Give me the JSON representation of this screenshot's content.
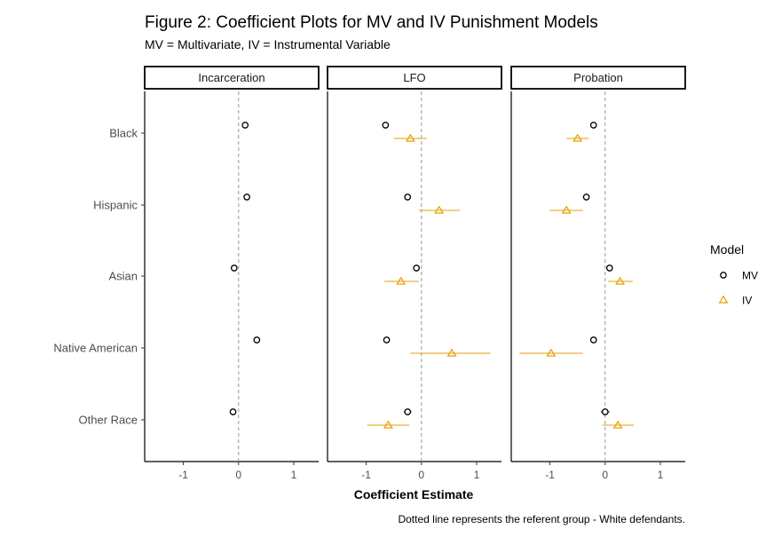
{
  "chart_data": {
    "type": "scatter",
    "title": "Figure 2: Coefficient Plots for MV and IV Punishment Models",
    "subtitle": "MV = Multivariate, IV = Instrumental Variable",
    "xlabel": "Coefficient Estimate",
    "caption": "Dotted line represents the referent group - White defendants.",
    "xlim": [
      -1.7,
      1.45
    ],
    "x_ticks": [
      "-1",
      "0",
      "1"
    ],
    "x_tick_values": [
      -1,
      0,
      1
    ],
    "reference_line": 0,
    "grid": false,
    "categories": [
      "Black",
      "Hispanic",
      "Asian",
      "Native American",
      "Other Race"
    ],
    "panels": [
      "Incarceration",
      "LFO",
      "Probation"
    ],
    "legend": {
      "title": "Model",
      "placement": "right",
      "items": [
        {
          "label": "MV",
          "shape": "circle",
          "color": "#000000"
        },
        {
          "label": "IV",
          "shape": "triangle",
          "color": "#E69F00"
        }
      ]
    },
    "series": [
      {
        "name": "MV",
        "color": "#000000",
        "shape": "circle",
        "points": [
          {
            "panel": "Incarceration",
            "category": "Black",
            "estimate": 0.12,
            "low": 0.08,
            "high": 0.16
          },
          {
            "panel": "Incarceration",
            "category": "Hispanic",
            "estimate": 0.15,
            "low": 0.11,
            "high": 0.19
          },
          {
            "panel": "Incarceration",
            "category": "Asian",
            "estimate": -0.08,
            "low": -0.13,
            "high": -0.03
          },
          {
            "panel": "Incarceration",
            "category": "Native American",
            "estimate": 0.33,
            "low": 0.29,
            "high": 0.37
          },
          {
            "panel": "Incarceration",
            "category": "Other Race",
            "estimate": -0.1,
            "low": -0.15,
            "high": -0.05
          },
          {
            "panel": "LFO",
            "category": "Black",
            "estimate": -0.65,
            "low": -0.69,
            "high": -0.61
          },
          {
            "panel": "LFO",
            "category": "Hispanic",
            "estimate": -0.25,
            "low": -0.29,
            "high": -0.21
          },
          {
            "panel": "LFO",
            "category": "Asian",
            "estimate": -0.09,
            "low": -0.15,
            "high": -0.03
          },
          {
            "panel": "LFO",
            "category": "Native American",
            "estimate": -0.63,
            "low": -0.67,
            "high": -0.59
          },
          {
            "panel": "LFO",
            "category": "Other Race",
            "estimate": -0.25,
            "low": -0.32,
            "high": -0.18
          },
          {
            "panel": "Probation",
            "category": "Black",
            "estimate": -0.21,
            "low": -0.25,
            "high": -0.17
          },
          {
            "panel": "Probation",
            "category": "Hispanic",
            "estimate": -0.34,
            "low": -0.38,
            "high": -0.3
          },
          {
            "panel": "Probation",
            "category": "Asian",
            "estimate": 0.08,
            "low": 0.02,
            "high": 0.14
          },
          {
            "panel": "Probation",
            "category": "Native American",
            "estimate": -0.21,
            "low": -0.25,
            "high": -0.17
          },
          {
            "panel": "Probation",
            "category": "Other Race",
            "estimate": 0.0,
            "low": -0.08,
            "high": 0.08
          }
        ]
      },
      {
        "name": "IV",
        "color": "#E69F00",
        "shape": "triangle",
        "points": [
          {
            "panel": "LFO",
            "category": "Black",
            "estimate": -0.2,
            "low": -0.5,
            "high": 0.1
          },
          {
            "panel": "LFO",
            "category": "Hispanic",
            "estimate": 0.32,
            "low": -0.05,
            "high": 0.7
          },
          {
            "panel": "LFO",
            "category": "Asian",
            "estimate": -0.37,
            "low": -0.67,
            "high": -0.05
          },
          {
            "panel": "LFO",
            "category": "Native American",
            "estimate": 0.55,
            "low": -0.2,
            "high": 1.25
          },
          {
            "panel": "LFO",
            "category": "Other Race",
            "estimate": -0.6,
            "low": -0.98,
            "high": -0.22
          },
          {
            "panel": "Probation",
            "category": "Black",
            "estimate": -0.5,
            "low": -0.7,
            "high": -0.3
          },
          {
            "panel": "Probation",
            "category": "Hispanic",
            "estimate": -0.7,
            "low": -1.0,
            "high": -0.4
          },
          {
            "panel": "Probation",
            "category": "Asian",
            "estimate": 0.27,
            "low": 0.05,
            "high": 0.5
          },
          {
            "panel": "Probation",
            "category": "Native American",
            "estimate": -0.98,
            "low": -1.55,
            "high": -0.4
          },
          {
            "panel": "Probation",
            "category": "Other Race",
            "estimate": 0.23,
            "low": -0.05,
            "high": 0.52
          }
        ]
      }
    ]
  }
}
